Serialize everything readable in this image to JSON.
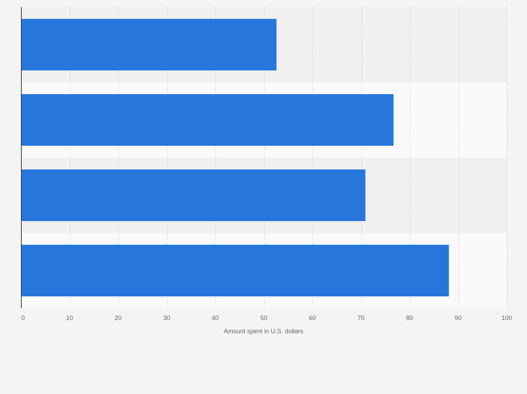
{
  "chart_data": {
    "type": "bar",
    "orientation": "horizontal",
    "categories": [
      "",
      "",
      "",
      ""
    ],
    "values": [
      52.6,
      76.7,
      70.9,
      88.1
    ],
    "title": "",
    "xlabel": "Amount spent in U.S. dollars",
    "ylabel": "",
    "xlim": [
      0,
      100
    ],
    "x_ticks": [
      0,
      10,
      20,
      30,
      40,
      50,
      60,
      70,
      80,
      90,
      100
    ],
    "grid": true,
    "legend": "none",
    "colors": {
      "bar": "#2776dc",
      "band_dark": "#f0f0f0",
      "band_light": "#fafafa",
      "grid": "#d6d6d6",
      "axis": "#333333",
      "tick_text": "#666666"
    }
  }
}
